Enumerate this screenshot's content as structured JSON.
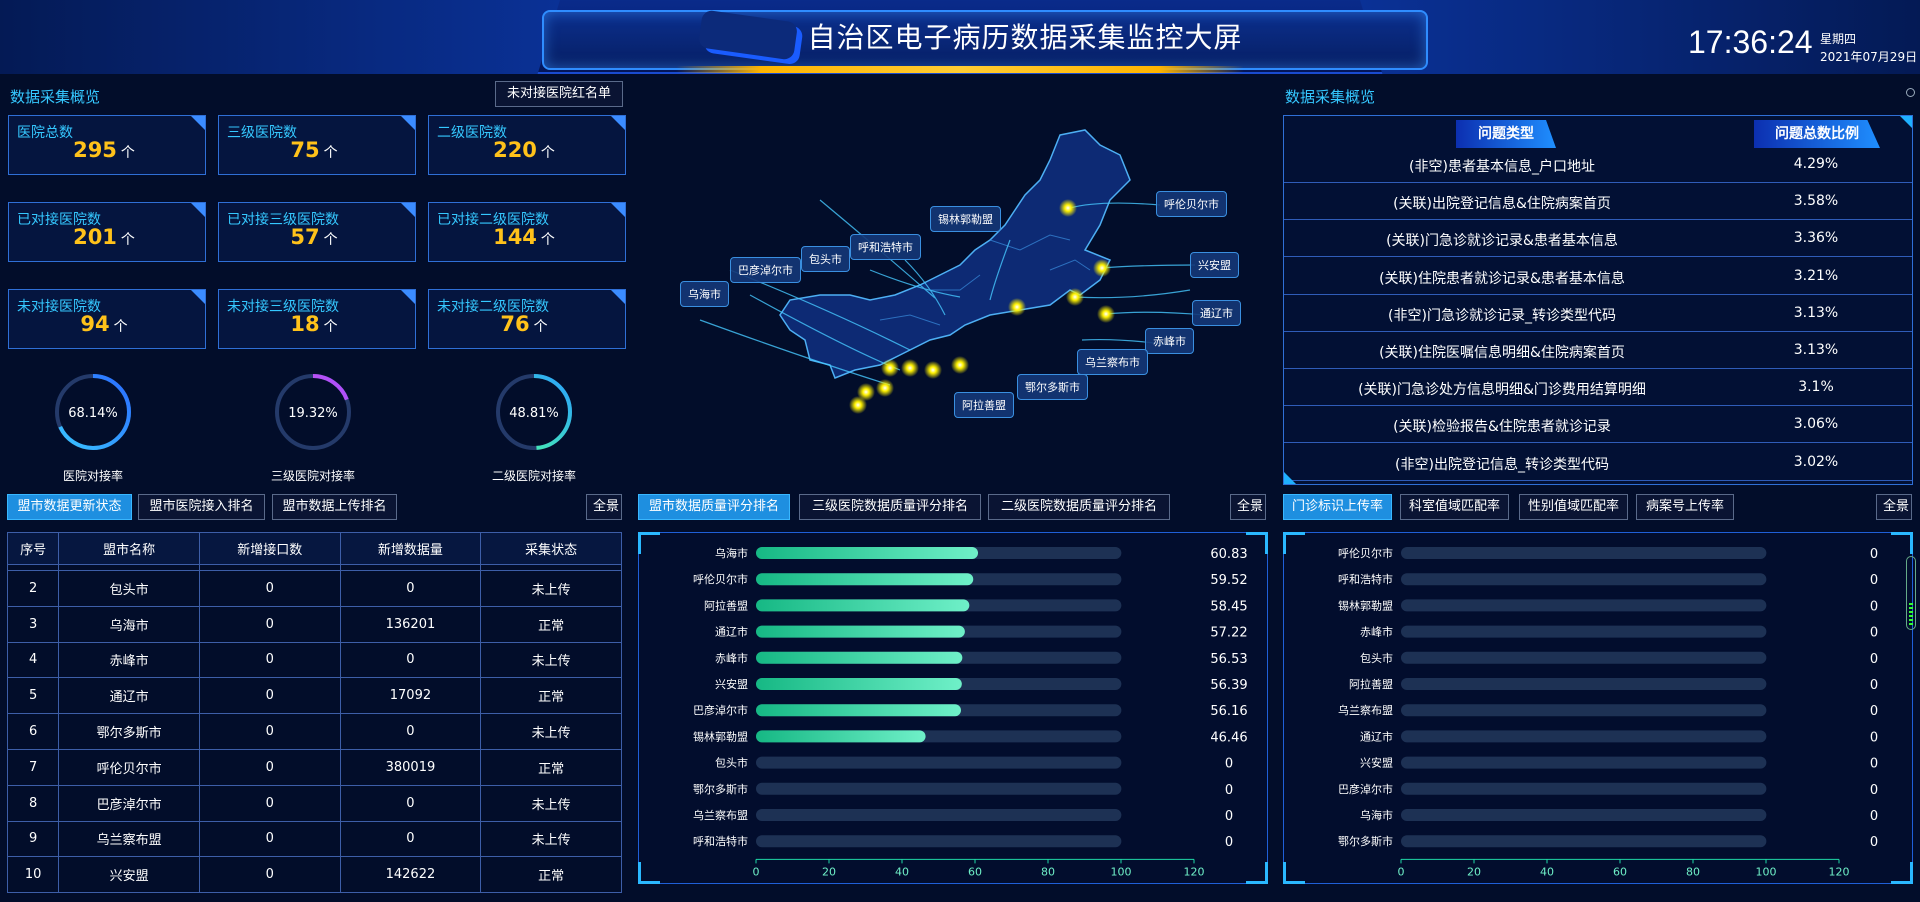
{
  "header": {
    "title": "自治区电子病历数据采集监控大屏",
    "time": "17:36:24",
    "weekday": "星期四",
    "date": "2021年07月29日"
  },
  "left": {
    "section_title": "数据采集概览",
    "blacklist_button": "未对接医院红名单",
    "cards": [
      {
        "label": "医院总数",
        "value": "295",
        "unit": "个"
      },
      {
        "label": "三级医院数",
        "value": "75",
        "unit": "个"
      },
      {
        "label": "二级医院数",
        "value": "220",
        "unit": "个"
      },
      {
        "label": "已对接医院数",
        "value": "201",
        "unit": "个"
      },
      {
        "label": "已对接三级医院数",
        "value": "57",
        "unit": "个"
      },
      {
        "label": "已对接二级医院数",
        "value": "144",
        "unit": "个"
      },
      {
        "label": "未对接医院数",
        "value": "94",
        "unit": "个"
      },
      {
        "label": "未对接三级医院数",
        "value": "18",
        "unit": "个"
      },
      {
        "label": "未对接二级医院数",
        "value": "76",
        "unit": "个"
      }
    ],
    "rings": [
      {
        "label": "医院对接率",
        "pct_text": "68.14%",
        "fraction": 0.6814,
        "color": "#3ac6ff",
        "color2": "#2a6bff"
      },
      {
        "label": "三级医院对接率",
        "pct_text": "19.32%",
        "fraction": 0.1932,
        "color": "#ff6ad5",
        "color2": "#a24bff"
      },
      {
        "label": "二级医院对接率",
        "pct_text": "48.81%",
        "fraction": 0.4881,
        "color": "#4dffa0",
        "color2": "#2aa0ff"
      }
    ],
    "tabs": [
      "盟市数据更新状态",
      "盟市医院接入排名",
      "盟市数据上传排名"
    ],
    "fullview": "全景",
    "table": {
      "headers": [
        "序号",
        "盟市名称",
        "新增接口数",
        "新增数据量",
        "采集状态"
      ],
      "rows": [
        [
          "2",
          "包头市",
          "0",
          "0",
          "未上传"
        ],
        [
          "3",
          "乌海市",
          "0",
          "136201",
          "正常"
        ],
        [
          "4",
          "赤峰市",
          "0",
          "0",
          "未上传"
        ],
        [
          "5",
          "通辽市",
          "0",
          "17092",
          "正常"
        ],
        [
          "6",
          "鄂尔多斯市",
          "0",
          "0",
          "未上传"
        ],
        [
          "7",
          "呼伦贝尔市",
          "0",
          "380019",
          "正常"
        ],
        [
          "8",
          "巴彦淖尔市",
          "0",
          "0",
          "未上传"
        ],
        [
          "9",
          "乌兰察布盟",
          "0",
          "0",
          "未上传"
        ],
        [
          "10",
          "兴安盟",
          "0",
          "142622",
          "正常"
        ]
      ]
    }
  },
  "map": {
    "labels": [
      "呼伦贝尔市",
      "兴安盟",
      "通辽市",
      "赤峰市",
      "锡林郭勒盟",
      "呼和浩特市",
      "包头市",
      "巴彦淖尔市",
      "乌海市",
      "乌兰察布市",
      "鄂尔多斯市",
      "阿拉善盟"
    ]
  },
  "middle": {
    "tabs": [
      "盟市数据质量评分排名",
      "三级医院数据质量评分排名",
      "二级医院数据质量评分排名"
    ],
    "fullview": "全景"
  },
  "right": {
    "section_title": "数据采集概览",
    "col_type": "问题类型",
    "col_ratio": "问题总数比例",
    "problems": [
      {
        "name": "(非空)患者基本信息_户口地址",
        "pct": "4.29%"
      },
      {
        "name": "(关联)出院登记信息&住院病案首页",
        "pct": "3.58%"
      },
      {
        "name": "(关联)门急诊就诊记录&患者基本信息",
        "pct": "3.36%"
      },
      {
        "name": "(关联)住院患者就诊记录&患者基本信息",
        "pct": "3.21%"
      },
      {
        "name": "(非空)门急诊就诊记录_转诊类型代码",
        "pct": "3.13%"
      },
      {
        "name": "(关联)住院医嘱信息明细&住院病案首页",
        "pct": "3.13%"
      },
      {
        "name": "(关联)门急诊处方信息明细&门诊费用结算明细",
        "pct": "3.1%"
      },
      {
        "name": "(关联)检验报告&住院患者就诊记录",
        "pct": "3.06%"
      },
      {
        "name": "(非空)出院登记信息_转诊类型代码",
        "pct": "3.02%"
      }
    ],
    "tabs": [
      "门诊标识上传率",
      "科室值域匹配率",
      "性别值域匹配率",
      "病案号上传率"
    ],
    "fullview": "全景"
  },
  "chart_data": [
    {
      "type": "bar",
      "orientation": "horizontal",
      "categories": [
        "乌海市",
        "呼伦贝尔市",
        "阿拉善盟",
        "通辽市",
        "赤峰市",
        "兴安盟",
        "巴彦淖尔市",
        "锡林郭勒盟",
        "包头市",
        "鄂尔多斯市",
        "乌兰察布盟",
        "呼和浩特市"
      ],
      "values": [
        60.83,
        59.52,
        58.45,
        57.22,
        56.53,
        56.39,
        56.16,
        46.46,
        0,
        0,
        0,
        0
      ],
      "value_labels": [
        "60.83",
        "59.52",
        "58.45",
        "57.22",
        "56.53",
        "56.39",
        "56.16",
        "46.46",
        "0",
        "0",
        "0",
        "0"
      ],
      "xlim": [
        0,
        120
      ],
      "xticks": [
        "0",
        "20",
        "40",
        "60",
        "80",
        "100",
        "120"
      ],
      "bar_color": "#2ad6a2",
      "track_max": 110
    },
    {
      "type": "bar",
      "orientation": "horizontal",
      "categories": [
        "呼伦贝尔市",
        "呼和浩特市",
        "锡林郭勒盟",
        "赤峰市",
        "包头市",
        "阿拉善盟",
        "乌兰察布盟",
        "通辽市",
        "兴安盟",
        "巴彦淖尔市",
        "乌海市",
        "鄂尔多斯市"
      ],
      "values": [
        0,
        0,
        0,
        0,
        0,
        0,
        0,
        0,
        0,
        0,
        0,
        0
      ],
      "value_labels": [
        "0",
        "0",
        "0",
        "0",
        "0",
        "0",
        "0",
        "0",
        "0",
        "0",
        "0",
        "0"
      ],
      "xlim": [
        0,
        120
      ],
      "xticks": [
        "0",
        "20",
        "40",
        "60",
        "80",
        "100",
        "120"
      ],
      "bar_color": "#2ad6a2",
      "track_max": 110
    }
  ]
}
